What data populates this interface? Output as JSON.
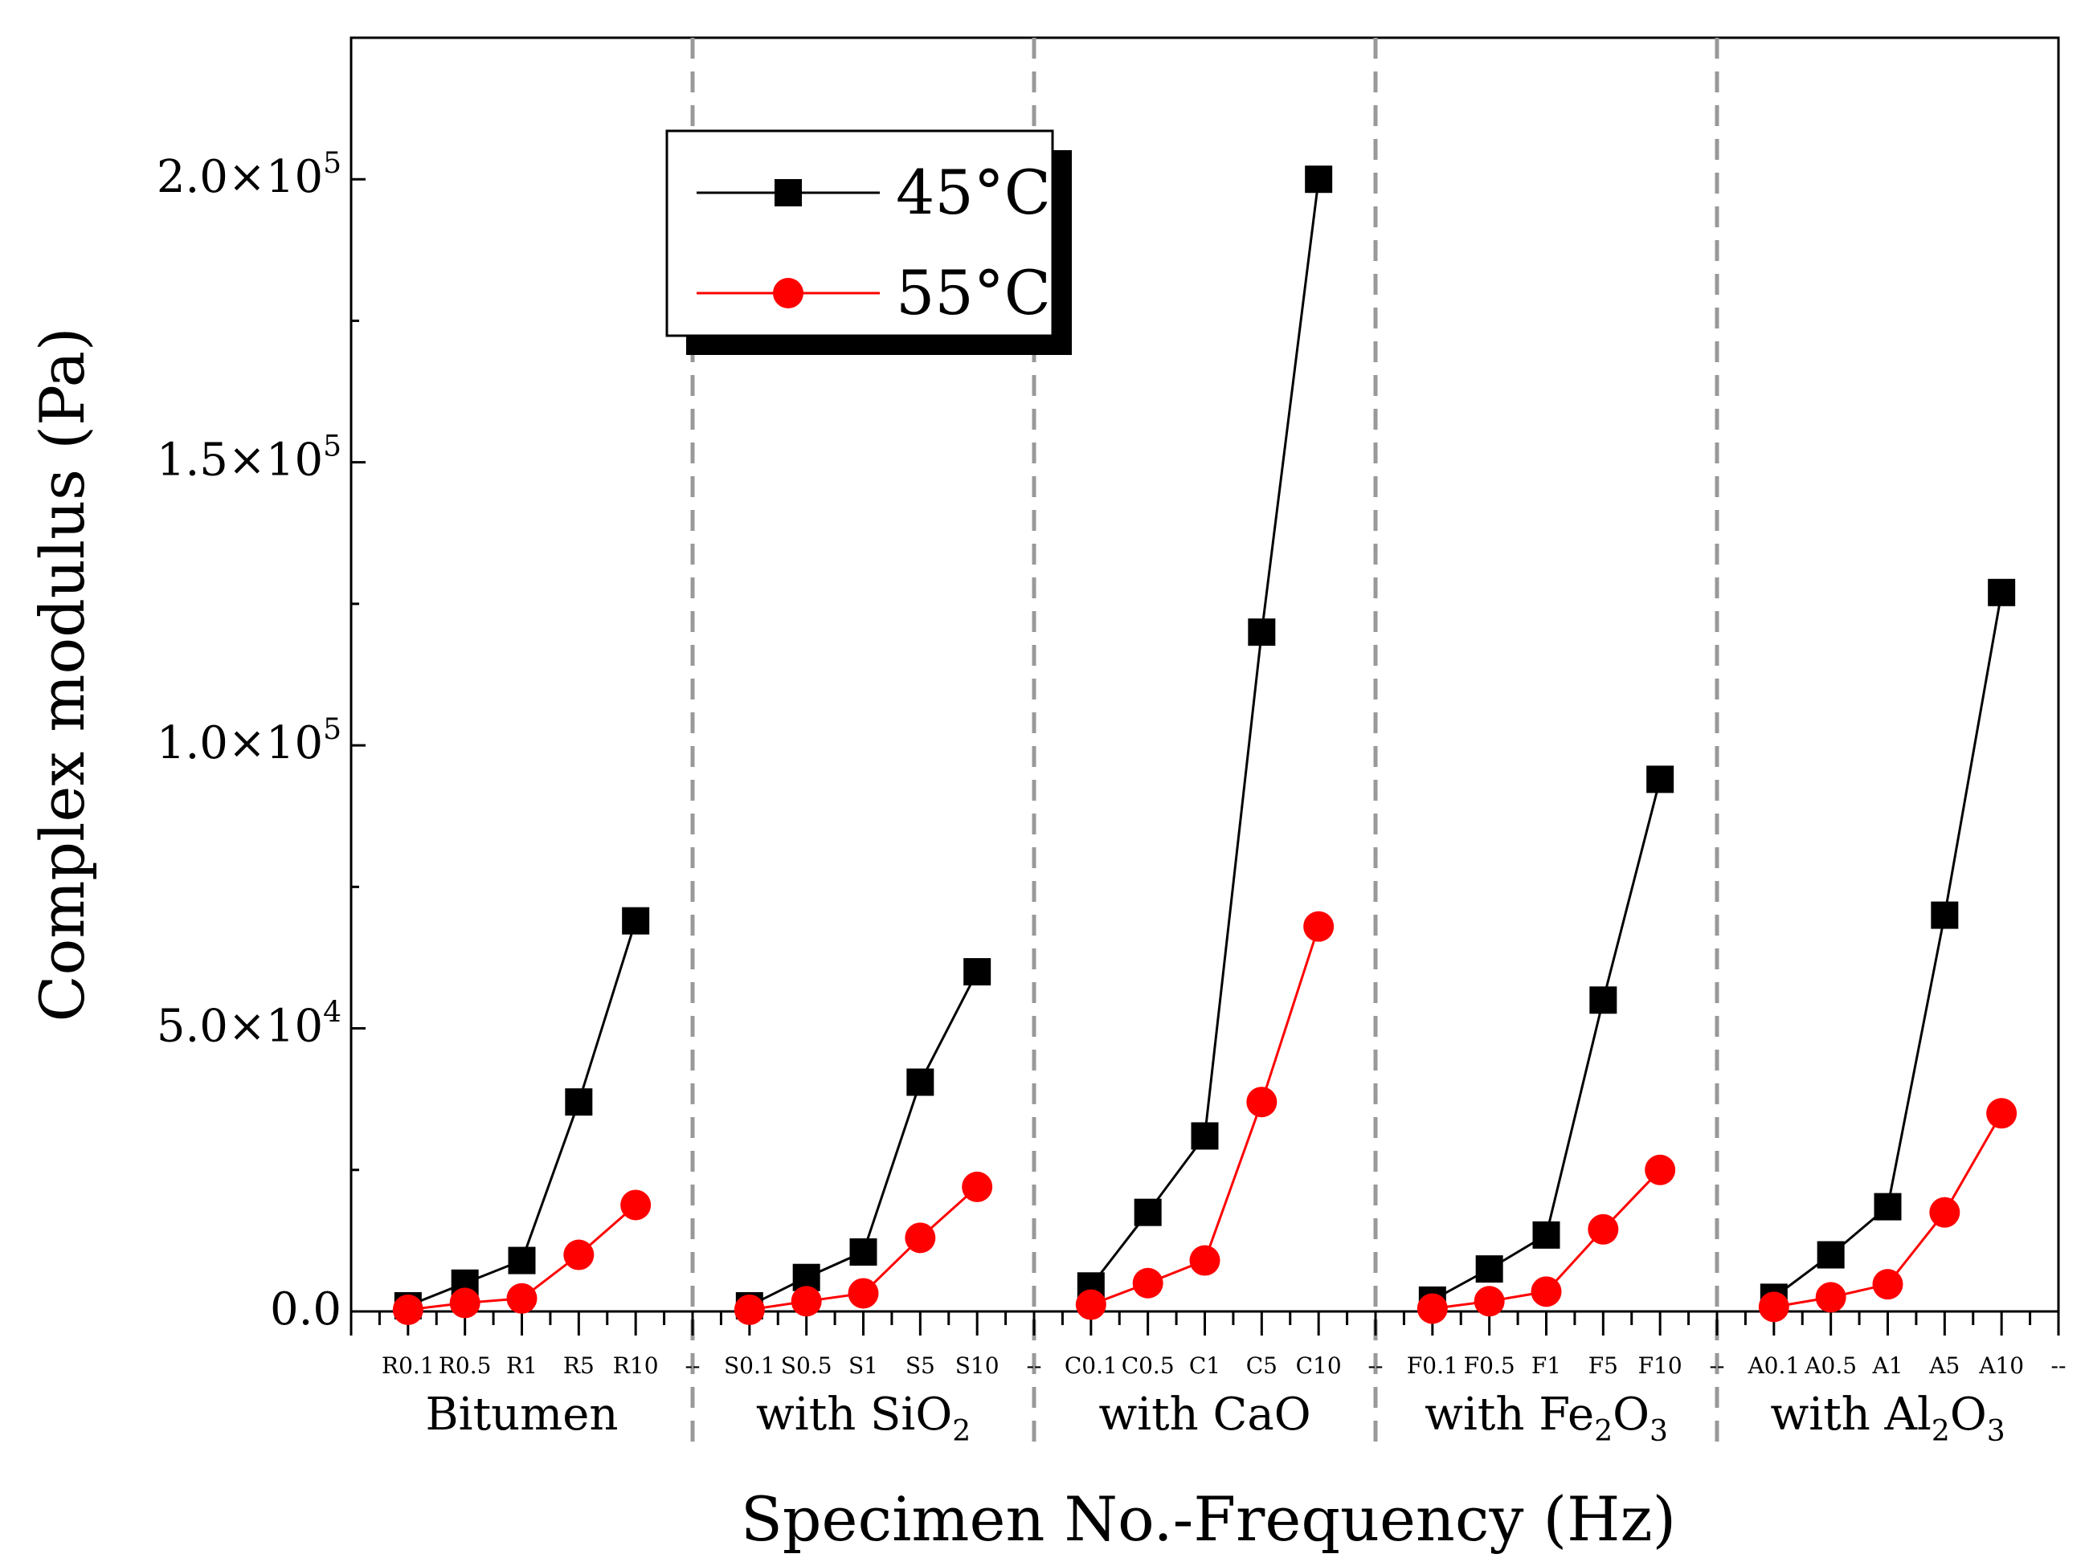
{
  "chart_data": {
    "type": "line",
    "xlabel": "Specimen No.-Frequency (Hz)",
    "ylabel": "Complex modulus (Pa)",
    "ylim": [
      0,
      225000
    ],
    "xlim": [
      0,
      30
    ],
    "y_ticks": [
      {
        "value": 0,
        "mantissa": "0.0",
        "exponent": ""
      },
      {
        "value": 50000,
        "mantissa": "5.0×10",
        "exponent": "4"
      },
      {
        "value": 100000,
        "mantissa": "1.0×10",
        "exponent": "5"
      },
      {
        "value": 150000,
        "mantissa": "1.5×10",
        "exponent": "5"
      },
      {
        "value": 200000,
        "mantissa": "2.0×10",
        "exponent": "5"
      }
    ],
    "categories": [
      "R0.1",
      "R0.5",
      "R1",
      "R5",
      "R10",
      "--",
      "S0.1",
      "S0.5",
      "S1",
      "S5",
      "S10",
      "--",
      "C0.1",
      "C0.5",
      "C1",
      "C5",
      "C10",
      "--",
      "F0.1",
      "F0.5",
      "F1",
      "F5",
      "F10",
      "--",
      "A0.1",
      "A0.5",
      "A1",
      "A5",
      "A10",
      "--"
    ],
    "groups": [
      {
        "main": "Bitumen",
        "sub": "",
        "tail": "",
        "sub2": ""
      },
      {
        "main": "with SiO",
        "sub": "2",
        "tail": "",
        "sub2": ""
      },
      {
        "main": "with CaO",
        "sub": "",
        "tail": "",
        "sub2": ""
      },
      {
        "main": "with Fe",
        "sub": "2",
        "tail": "O",
        "sub2": "3"
      },
      {
        "main": "with Al",
        "sub": "2",
        "tail": "O",
        "sub2": "3"
      }
    ],
    "separators_at": [
      6,
      12,
      18,
      24
    ],
    "series": [
      {
        "name": "45°C",
        "color": "#000000",
        "marker": "square",
        "segments": [
          {
            "x": [
              1,
              2,
              3,
              4,
              5
            ],
            "y": [
              1000,
              5000,
              9000,
              37000,
              69000
            ]
          },
          {
            "x": [
              7,
              8,
              9,
              10,
              11
            ],
            "y": [
              1000,
              6000,
              10500,
              40500,
              60000
            ]
          },
          {
            "x": [
              13,
              14,
              15,
              16,
              17
            ],
            "y": [
              4500,
              17500,
              31000,
              120000,
              200000
            ]
          },
          {
            "x": [
              19,
              20,
              21,
              22,
              23
            ],
            "y": [
              2000,
              7500,
              13500,
              55000,
              94000
            ]
          },
          {
            "x": [
              25,
              26,
              27,
              28,
              29
            ],
            "y": [
              2500,
              10000,
              18500,
              70000,
              127000
            ]
          }
        ]
      },
      {
        "name": "55°C",
        "color": "#ff0000",
        "marker": "circle",
        "segments": [
          {
            "x": [
              1,
              2,
              3,
              4,
              5
            ],
            "y": [
              300,
              1500,
              2300,
              10000,
              18800
            ]
          },
          {
            "x": [
              7,
              8,
              9,
              10,
              11
            ],
            "y": [
              300,
              1800,
              3200,
              13000,
              22000
            ]
          },
          {
            "x": [
              13,
              14,
              15,
              16,
              17
            ],
            "y": [
              1200,
              5000,
              9000,
              37000,
              68000
            ]
          },
          {
            "x": [
              19,
              20,
              21,
              22,
              23
            ],
            "y": [
              500,
              1800,
              3500,
              14500,
              25000
            ]
          },
          {
            "x": [
              25,
              26,
              27,
              28,
              29
            ],
            "y": [
              800,
              2500,
              4800,
              17500,
              35000
            ]
          }
        ]
      }
    ],
    "legend": {
      "position": "top-left",
      "entries": [
        {
          "label": "45°C"
        },
        {
          "label": "55°C"
        }
      ]
    }
  }
}
